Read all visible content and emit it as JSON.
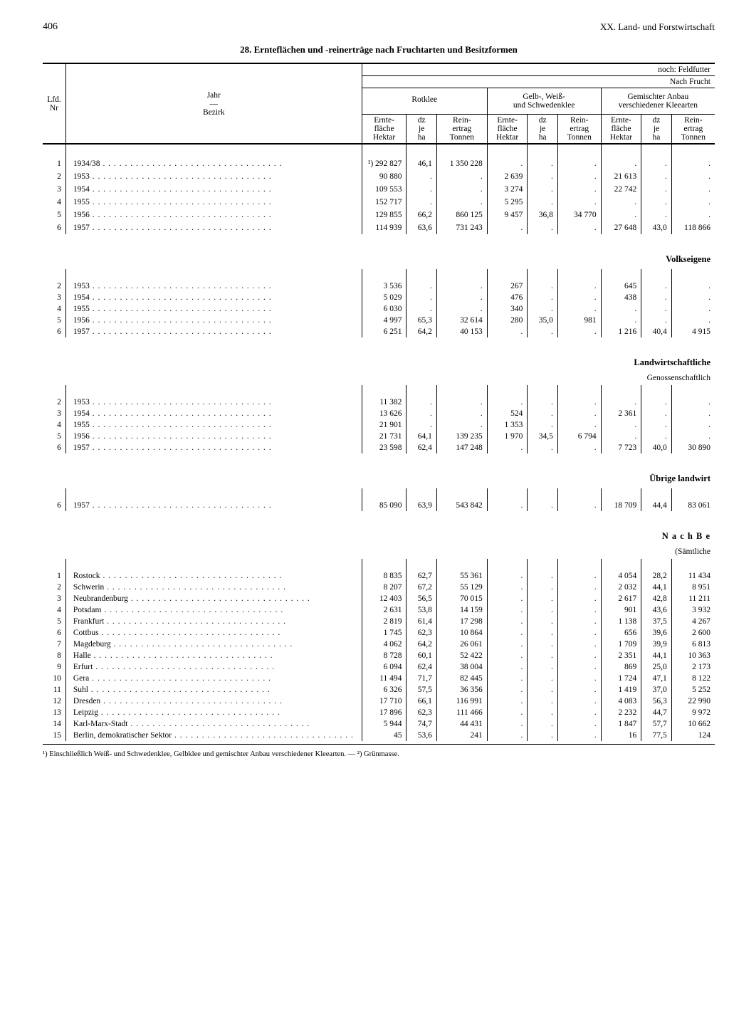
{
  "page_number": "406",
  "chapter": "XX. Land- und Forstwirtschaft",
  "title": "28. Ernteflächen und -reinerträge nach Fruchtarten und Besitzformen",
  "over_header_right": "noch: Feldfutter",
  "over_header_right2": "Nach Frucht",
  "stub_line1": "Jahr",
  "stub_line2": "—",
  "stub_line3": "Bezirk",
  "lfd_label1": "Lfd.",
  "lfd_label2": "Nr",
  "grp1": "Rotklee",
  "grp2_l1": "Gelb-, Weiß-",
  "grp2_l2": "und Schwedenklee",
  "grp3_l1": "Gemischter Anbau",
  "grp3_l2": "verschiedener Kleearten",
  "sub_e1": "Ernte-",
  "sub_e2": "fläche",
  "sub_e3": "Hektar",
  "sub_d1": "dz",
  "sub_d2": "je",
  "sub_d3": "ha",
  "sub_r1": "Rein-",
  "sub_r2": "ertrag",
  "sub_r3": "Tonnen",
  "sect_volk": "Volkseigene",
  "sect_land": "Landwirtschaftliche",
  "sect_land_sub": "Genossenschaftlich",
  "sect_uebr": "Übrige landwirt",
  "sect_nachbe": "N a c h   B e",
  "sect_nachbe_sub": "(Sämtliche",
  "footnote": "¹) Einschließlich Weiß- und Schwedenklee, Gelbklee und gemischter Anbau verschiedener Kleearten. — ²) Grünmasse.",
  "main": [
    {
      "nr": "1",
      "lab": "1934/38",
      "e1": "¹) 292 827",
      "d1": "46,1",
      "r1": "1 350 228",
      "e2": ".",
      "d2": ".",
      "r2": ".",
      "e3": ".",
      "d3": ".",
      "r3": "."
    },
    {
      "nr": "2",
      "lab": "1953",
      "e1": "90 880",
      "d1": ".",
      "r1": ".",
      "e2": "2 639",
      "d2": ".",
      "r2": ".",
      "e3": "21 613",
      "d3": ".",
      "r3": "."
    },
    {
      "nr": "3",
      "lab": "1954",
      "e1": "109 553",
      "d1": ".",
      "r1": ".",
      "e2": "3 274",
      "d2": ".",
      "r2": ".",
      "e3": "22 742",
      "d3": ".",
      "r3": "."
    },
    {
      "nr": "4",
      "lab": "1955",
      "e1": "152 717",
      "d1": ".",
      "r1": ".",
      "e2": "5 295",
      "d2": ".",
      "r2": ".",
      "e3": ".",
      "d3": ".",
      "r3": "."
    },
    {
      "nr": "5",
      "lab": "1956",
      "e1": "129 855",
      "d1": "66,2",
      "r1": "860 125",
      "e2": "9 457",
      "d2": "36,8",
      "r2": "34 770",
      "e3": ".",
      "d3": ".",
      "r3": "."
    },
    {
      "nr": "6",
      "lab": "1957",
      "e1": "114 939",
      "d1": "63,6",
      "r1": "731 243",
      "e2": ".",
      "d2": ".",
      "r2": ".",
      "e3": "27 648",
      "d3": "43,0",
      "r3": "118 866"
    }
  ],
  "volk": [
    {
      "nr": "2",
      "lab": "1953",
      "e1": "3 536",
      "d1": ".",
      "r1": ".",
      "e2": "267",
      "d2": ".",
      "r2": ".",
      "e3": "645",
      "d3": ".",
      "r3": "."
    },
    {
      "nr": "3",
      "lab": "1954",
      "e1": "5 029",
      "d1": ".",
      "r1": ".",
      "e2": "476",
      "d2": ".",
      "r2": ".",
      "e3": "438",
      "d3": ".",
      "r3": "."
    },
    {
      "nr": "4",
      "lab": "1955",
      "e1": "6 030",
      "d1": ".",
      "r1": ".",
      "e2": "340",
      "d2": ".",
      "r2": ".",
      "e3": ".",
      "d3": ".",
      "r3": "."
    },
    {
      "nr": "5",
      "lab": "1956",
      "e1": "4 997",
      "d1": "65,3",
      "r1": "32 614",
      "e2": "280",
      "d2": "35,0",
      "r2": "981",
      "e3": ".",
      "d3": ".",
      "r3": "."
    },
    {
      "nr": "6",
      "lab": "1957",
      "e1": "6 251",
      "d1": "64,2",
      "r1": "40 153",
      "e2": ".",
      "d2": ".",
      "r2": ".",
      "e3": "1 216",
      "d3": "40,4",
      "r3": "4 915"
    }
  ],
  "land": [
    {
      "nr": "2",
      "lab": "1953",
      "e1": "11 382",
      "d1": ".",
      "r1": ".",
      "e2": ".",
      "d2": ".",
      "r2": ".",
      "e3": ".",
      "d3": ".",
      "r3": "."
    },
    {
      "nr": "3",
      "lab": "1954",
      "e1": "13 626",
      "d1": ".",
      "r1": ".",
      "e2": "524",
      "d2": ".",
      "r2": ".",
      "e3": "2 361",
      "d3": ".",
      "r3": "."
    },
    {
      "nr": "4",
      "lab": "1955",
      "e1": "21 901",
      "d1": ".",
      "r1": ".",
      "e2": "1 353",
      "d2": ".",
      "r2": ".",
      "e3": ".",
      "d3": ".",
      "r3": "."
    },
    {
      "nr": "5",
      "lab": "1956",
      "e1": "21 731",
      "d1": "64,1",
      "r1": "139 235",
      "e2": "1 970",
      "d2": "34,5",
      "r2": "6 794",
      "e3": ".",
      "d3": ".",
      "r3": "."
    },
    {
      "nr": "6",
      "lab": "1957",
      "e1": "23 598",
      "d1": "62,4",
      "r1": "147 248",
      "e2": ".",
      "d2": ".",
      "r2": ".",
      "e3": "7 723",
      "d3": "40,0",
      "r3": "30 890"
    }
  ],
  "uebr": [
    {
      "nr": "6",
      "lab": "1957",
      "e1": "85 090",
      "d1": "63,9",
      "r1": "543 842",
      "e2": ".",
      "d2": ".",
      "r2": ".",
      "e3": "18 709",
      "d3": "44,4",
      "r3": "83 061"
    }
  ],
  "bezirk": [
    {
      "nr": "1",
      "lab": "Rostock",
      "e1": "8 835",
      "d1": "62,7",
      "r1": "55 361",
      "e2": ".",
      "d2": ".",
      "r2": ".",
      "e3": "4 054",
      "d3": "28,2",
      "r3": "11 434"
    },
    {
      "nr": "2",
      "lab": "Schwerin",
      "e1": "8 207",
      "d1": "67,2",
      "r1": "55 129",
      "e2": ".",
      "d2": ".",
      "r2": ".",
      "e3": "2 032",
      "d3": "44,1",
      "r3": "8 951"
    },
    {
      "nr": "3",
      "lab": "Neubrandenburg",
      "e1": "12 403",
      "d1": "56,5",
      "r1": "70 015",
      "e2": ".",
      "d2": ".",
      "r2": ".",
      "e3": "2 617",
      "d3": "42,8",
      "r3": "11 211"
    },
    {
      "nr": "4",
      "lab": "Potsdam",
      "e1": "2 631",
      "d1": "53,8",
      "r1": "14 159",
      "e2": ".",
      "d2": ".",
      "r2": ".",
      "e3": "901",
      "d3": "43,6",
      "r3": "3 932"
    },
    {
      "nr": "5",
      "lab": "Frankfurt",
      "e1": "2 819",
      "d1": "61,4",
      "r1": "17 298",
      "e2": ".",
      "d2": ".",
      "r2": ".",
      "e3": "1 138",
      "d3": "37,5",
      "r3": "4 267"
    },
    {
      "nr": "6",
      "lab": "Cottbus",
      "e1": "1 745",
      "d1": "62,3",
      "r1": "10 864",
      "e2": ".",
      "d2": ".",
      "r2": ".",
      "e3": "656",
      "d3": "39,6",
      "r3": "2 600"
    },
    {
      "nr": "7",
      "lab": "Magdeburg",
      "e1": "4 062",
      "d1": "64,2",
      "r1": "26 061",
      "e2": ".",
      "d2": ".",
      "r2": ".",
      "e3": "1 709",
      "d3": "39,9",
      "r3": "6 813"
    },
    {
      "nr": "8",
      "lab": "Halle",
      "e1": "8 728",
      "d1": "60,1",
      "r1": "52 422",
      "e2": ".",
      "d2": ".",
      "r2": ".",
      "e3": "2 351",
      "d3": "44,1",
      "r3": "10 363"
    },
    {
      "nr": "9",
      "lab": "Erfurt",
      "e1": "6 094",
      "d1": "62,4",
      "r1": "38 004",
      "e2": ".",
      "d2": ".",
      "r2": ".",
      "e3": "869",
      "d3": "25,0",
      "r3": "2 173"
    },
    {
      "nr": "10",
      "lab": "Gera",
      "e1": "11 494",
      "d1": "71,7",
      "r1": "82 445",
      "e2": ".",
      "d2": ".",
      "r2": ".",
      "e3": "1 724",
      "d3": "47,1",
      "r3": "8 122"
    },
    {
      "nr": "11",
      "lab": "Suhl",
      "e1": "6 326",
      "d1": "57,5",
      "r1": "36 356",
      "e2": ".",
      "d2": ".",
      "r2": ".",
      "e3": "1 419",
      "d3": "37,0",
      "r3": "5 252"
    },
    {
      "nr": "12",
      "lab": "Dresden",
      "e1": "17 710",
      "d1": "66,1",
      "r1": "116 991",
      "e2": ".",
      "d2": ".",
      "r2": ".",
      "e3": "4 083",
      "d3": "56,3",
      "r3": "22 990"
    },
    {
      "nr": "13",
      "lab": "Leipzig",
      "e1": "17 896",
      "d1": "62,3",
      "r1": "111 466",
      "e2": ".",
      "d2": ".",
      "r2": ".",
      "e3": "2 232",
      "d3": "44,7",
      "r3": "9 972"
    },
    {
      "nr": "14",
      "lab": "Karl-Marx-Stadt",
      "e1": "5 944",
      "d1": "74,7",
      "r1": "44 431",
      "e2": ".",
      "d2": ".",
      "r2": ".",
      "e3": "1 847",
      "d3": "57,7",
      "r3": "10 662"
    },
    {
      "nr": "15",
      "lab": "Berlin, demokratischer Sektor",
      "e1": "45",
      "d1": "53,6",
      "r1": "241",
      "e2": ".",
      "d2": ".",
      "r2": ".",
      "e3": "16",
      "d3": "77,5",
      "r3": "124"
    }
  ]
}
